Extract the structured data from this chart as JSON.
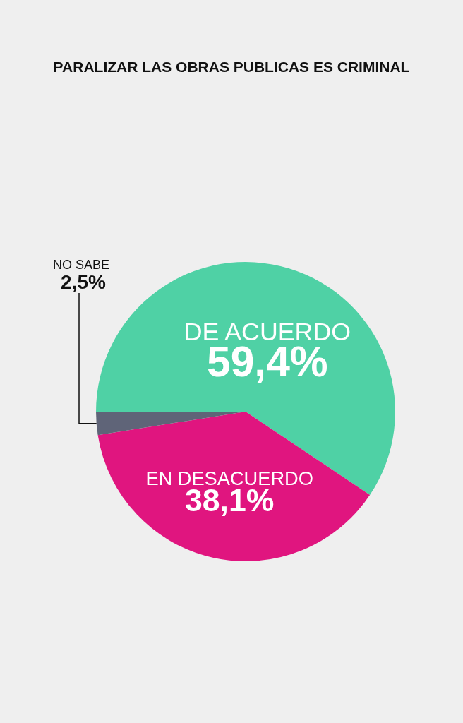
{
  "chart_data": {
    "type": "pie",
    "title": "PARALIZAR LAS OBRAS PUBLICAS ES CRIMINAL",
    "categories": [
      "DE ACUERDO",
      "EN DESACUERDO",
      "NO SABE"
    ],
    "values": [
      59.4,
      38.1,
      2.5
    ],
    "colors": [
      "#4fd1a5",
      "#e0157f",
      "#5f6478"
    ],
    "value_labels": [
      "59,4%",
      "38,1%",
      "2,5%"
    ],
    "legend": false
  }
}
